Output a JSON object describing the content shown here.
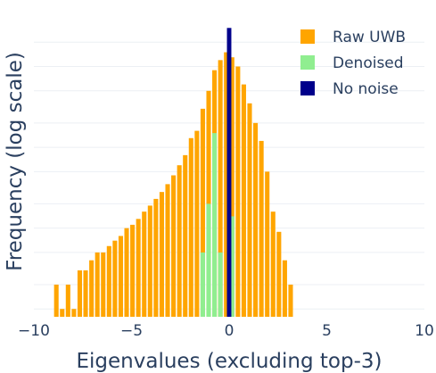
{
  "chart_data": {
    "type": "bar",
    "barmode": "overlay",
    "xlabel": "Eigenvalues (excluding top-3)",
    "ylabel": "Frequency (log scale)",
    "xlim": [
      -10,
      10
    ],
    "ylim": [
      0.8,
      4000
    ],
    "y_scale": "log",
    "x_ticks": [
      -10,
      -5,
      0,
      5,
      10
    ],
    "x_tick_labels": [
      "−10",
      "−5",
      "0",
      "5",
      "10"
    ],
    "grid": true,
    "legend_position": "top-right",
    "bin_width": 0.3,
    "series": [
      {
        "name": "Raw UWB",
        "color": "#FFA500",
        "x": [
          -8.85,
          -8.55,
          -8.25,
          -7.95,
          -7.65,
          -7.35,
          -7.05,
          -6.75,
          -6.45,
          -6.15,
          -5.85,
          -5.55,
          -5.25,
          -4.95,
          -4.65,
          -4.35,
          -4.05,
          -3.75,
          -3.45,
          -3.15,
          -2.85,
          -2.55,
          -2.25,
          -1.95,
          -1.65,
          -1.35,
          -1.05,
          -0.75,
          -0.45,
          -0.15,
          0.15,
          0.45,
          0.75,
          1.05,
          1.35,
          1.65,
          1.95,
          2.25,
          2.55,
          2.85,
          3.15
        ],
        "values": [
          2,
          1,
          2,
          1,
          3,
          3,
          4,
          5,
          5,
          6,
          7,
          8,
          10,
          11,
          13,
          16,
          19,
          23,
          28,
          35,
          45,
          60,
          80,
          130,
          160,
          300,
          500,
          900,
          1200,
          1500,
          1300,
          1000,
          600,
          350,
          200,
          120,
          50,
          16,
          9,
          4,
          2
        ]
      },
      {
        "name": "Denoised",
        "color": "#90EE90",
        "x": [
          -1.35,
          -1.05,
          -0.75,
          -0.45,
          0.15
        ],
        "values": [
          5,
          20,
          150,
          5,
          14
        ]
      },
      {
        "name": "No noise",
        "color": "#00008B",
        "x": [
          0.0
        ],
        "values": [
          3000
        ]
      }
    ]
  }
}
